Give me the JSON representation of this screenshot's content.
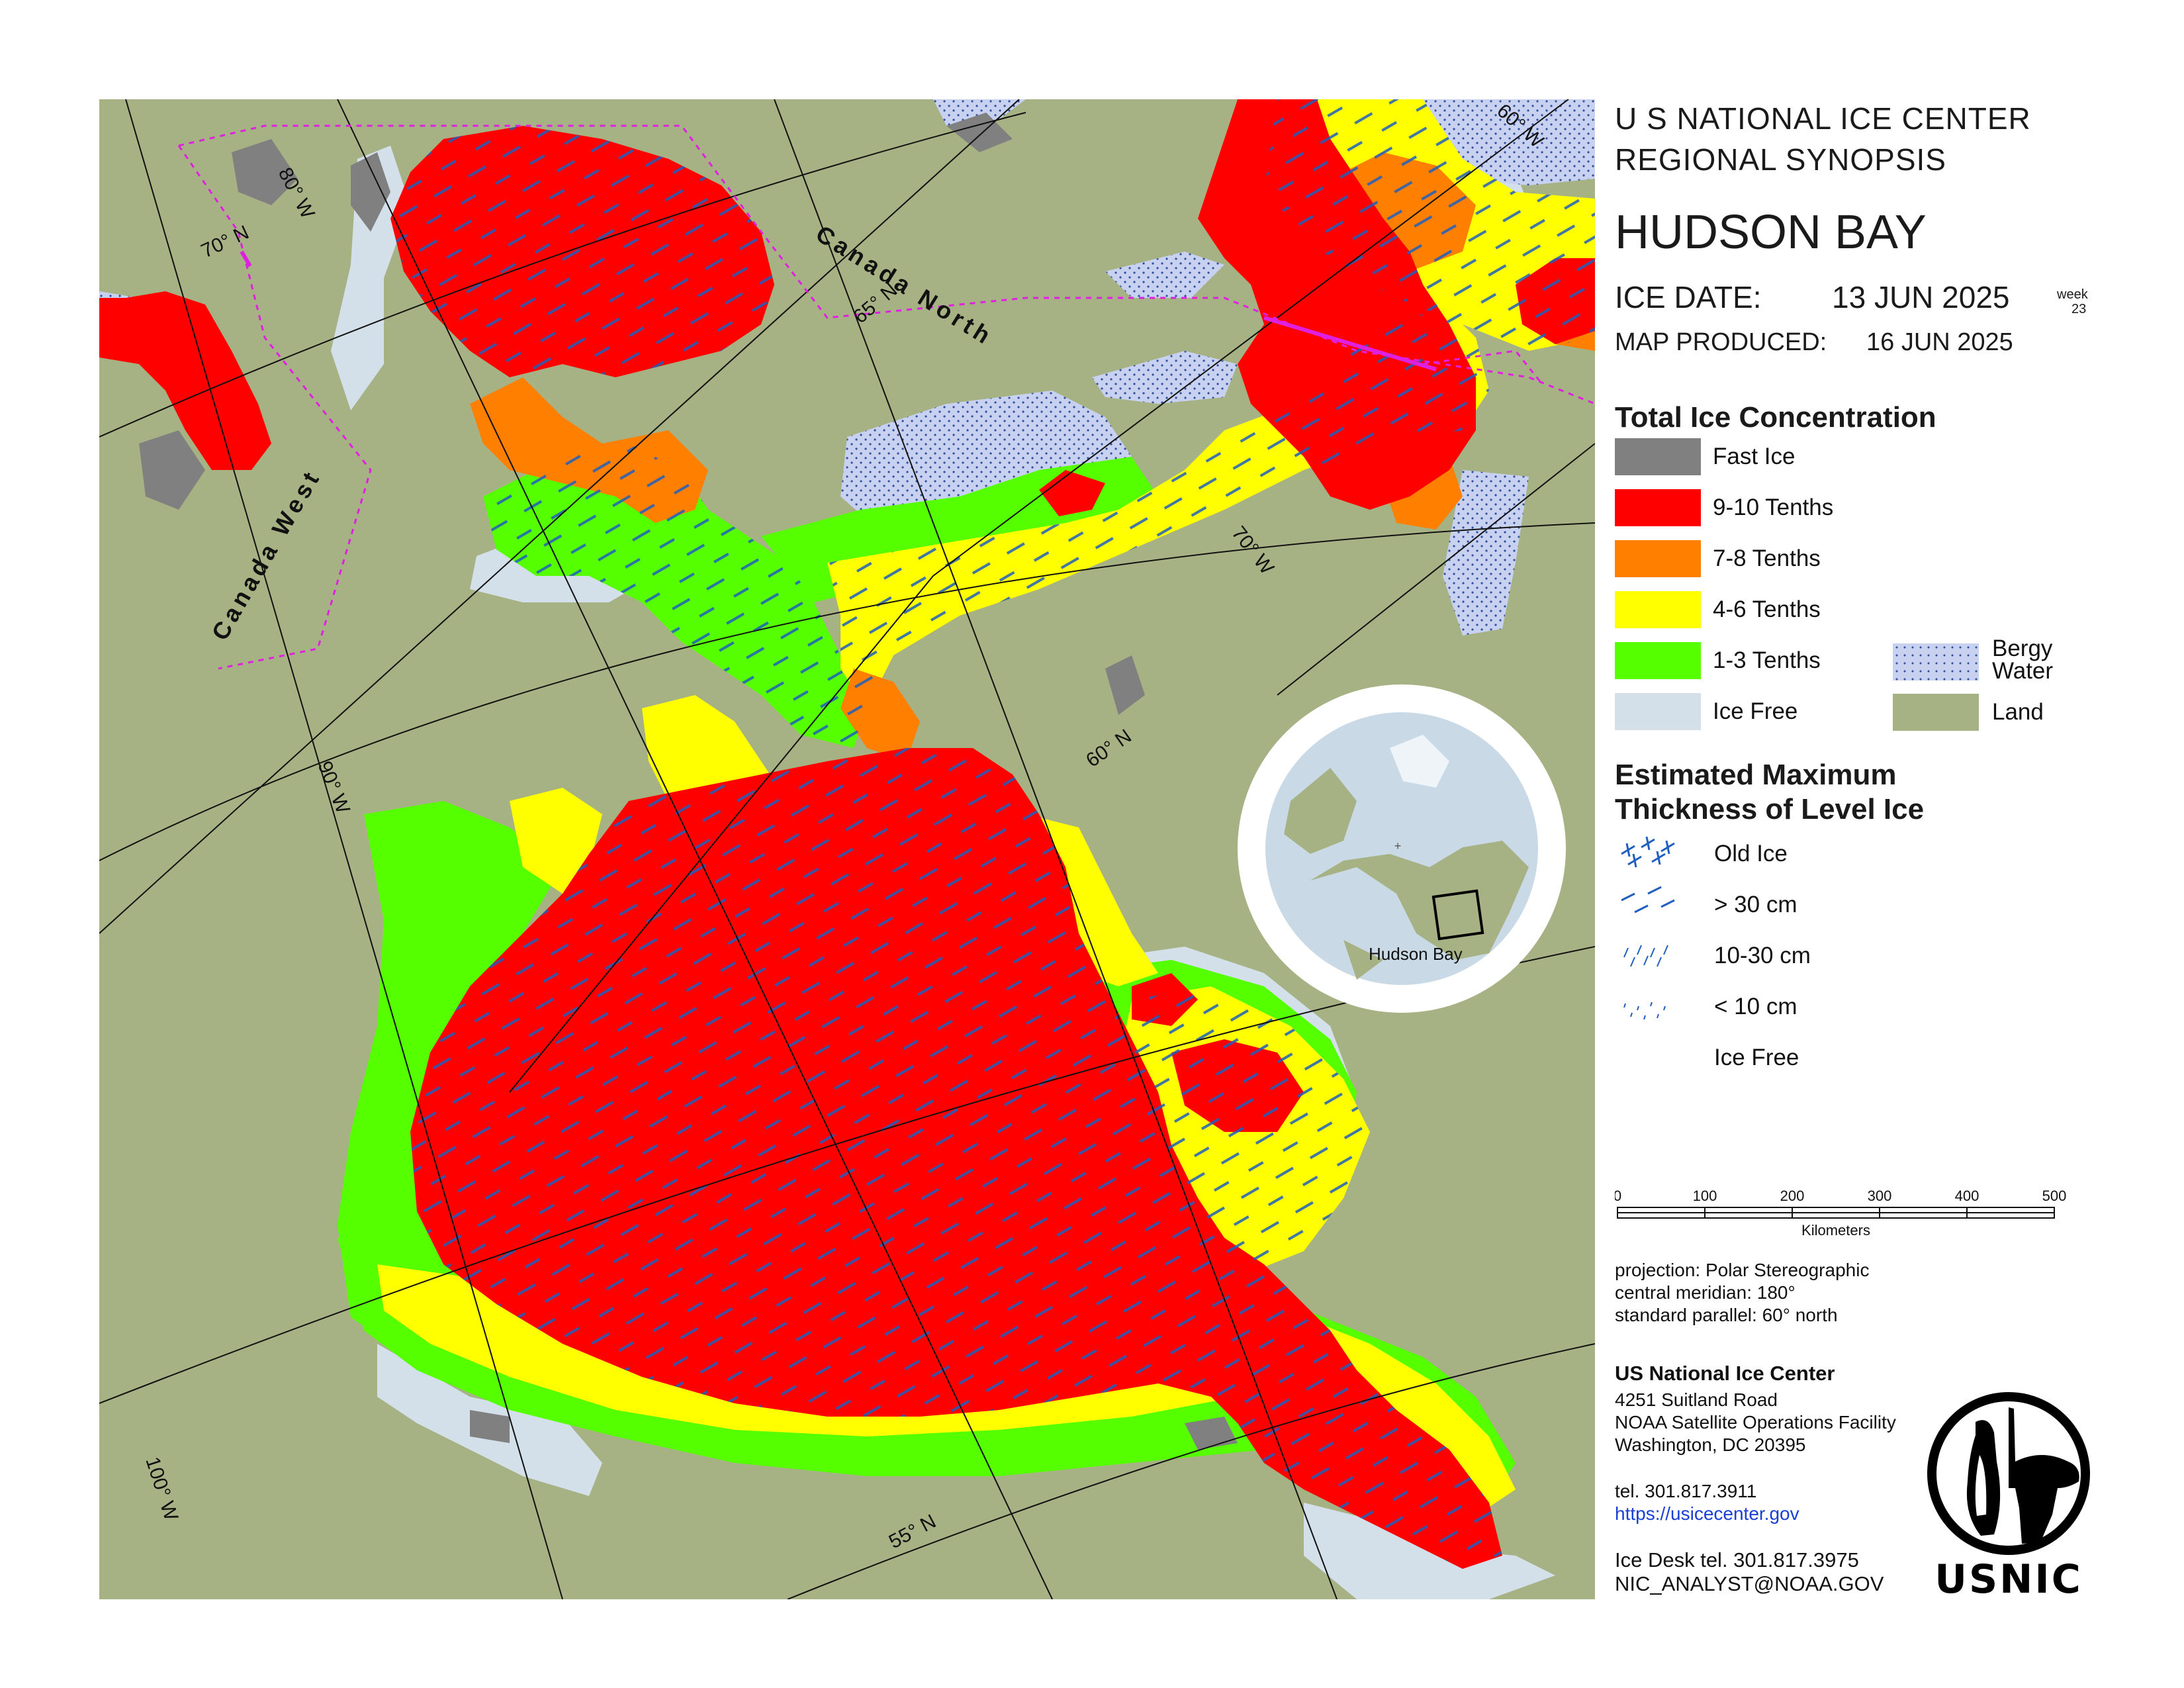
{
  "header": {
    "org_line1": "U S NATIONAL ICE CENTER",
    "org_line2": "REGIONAL SYNOPSIS",
    "region": "HUDSON BAY",
    "ice_date_label": "ICE DATE:",
    "ice_date": "13 JUN 2025",
    "week_label": "week",
    "week_number": "23",
    "produced_label": "MAP PRODUCED:",
    "produced_date": "16 JUN 2025"
  },
  "legend_concentration": {
    "title": "Total Ice Concentration",
    "items": [
      {
        "label": "Fast Ice",
        "color": "#808080"
      },
      {
        "label": "9-10 Tenths",
        "color": "#ff0000"
      },
      {
        "label": "7-8 Tenths",
        "color": "#ff7f00"
      },
      {
        "label": "4-6 Tenths",
        "color": "#ffff00"
      },
      {
        "label": "1-3 Tenths",
        "color": "#55ff00"
      },
      {
        "label": "Ice Free",
        "color": "#d3dfe9"
      }
    ],
    "extra_items": [
      {
        "label_line1": "Bergy",
        "label_line2": "Water",
        "color": "#c8d2f0"
      },
      {
        "label": "Land",
        "color": "#a6b283"
      }
    ]
  },
  "legend_thickness": {
    "title_line1": "Estimated Maximum",
    "title_line2": "Thickness of Level Ice",
    "items": [
      "Old Ice",
      "> 30 cm",
      "10-30 cm",
      "< 10 cm",
      "Ice Free"
    ]
  },
  "scale": {
    "ticks": [
      "0",
      "100",
      "200",
      "300",
      "400",
      "500"
    ],
    "unit": "Kilometers"
  },
  "projection": {
    "line1": "projection: Polar Stereographic",
    "line2": "central meridian: 180°",
    "line3": "standard parallel:  60° north"
  },
  "contact": {
    "org": "US National Ice Center",
    "address1": "4251 Suitland Road",
    "address2": "NOAA Satellite Operations Facility",
    "address3": "Washington, DC  20395",
    "tel": "tel. 301.817.3911",
    "url": "https://usicecenter.gov",
    "desk": "Ice Desk tel. 301.817.3975",
    "email": "NIC_ANALYST@NOAA.GOV"
  },
  "logo": {
    "text": "USNIC"
  },
  "inset": {
    "label": "Hudson Bay"
  },
  "map_labels": {
    "region_west": "Canada  West",
    "region_north": "Canada  North",
    "lon_80": "80° W",
    "lon_90": "90° W",
    "lon_100": "100° W",
    "lon_70": "70° W",
    "lon_60": "60° W",
    "lat_70": "70° N",
    "lat_65": "65° N",
    "lat_60": "60° N",
    "lat_55": "55° N"
  },
  "colors": {
    "land": "#a6b283",
    "ice_free": "#d3dfe9",
    "fast_ice": "#808080",
    "c9_10": "#ff0000",
    "c7_8": "#ff7f00",
    "c4_6": "#ffff00",
    "c1_3": "#55ff00",
    "bergy": "#c8d2f0",
    "zone_boundary": "#e020e0",
    "thickness_pattern": "#1f5fbf"
  }
}
